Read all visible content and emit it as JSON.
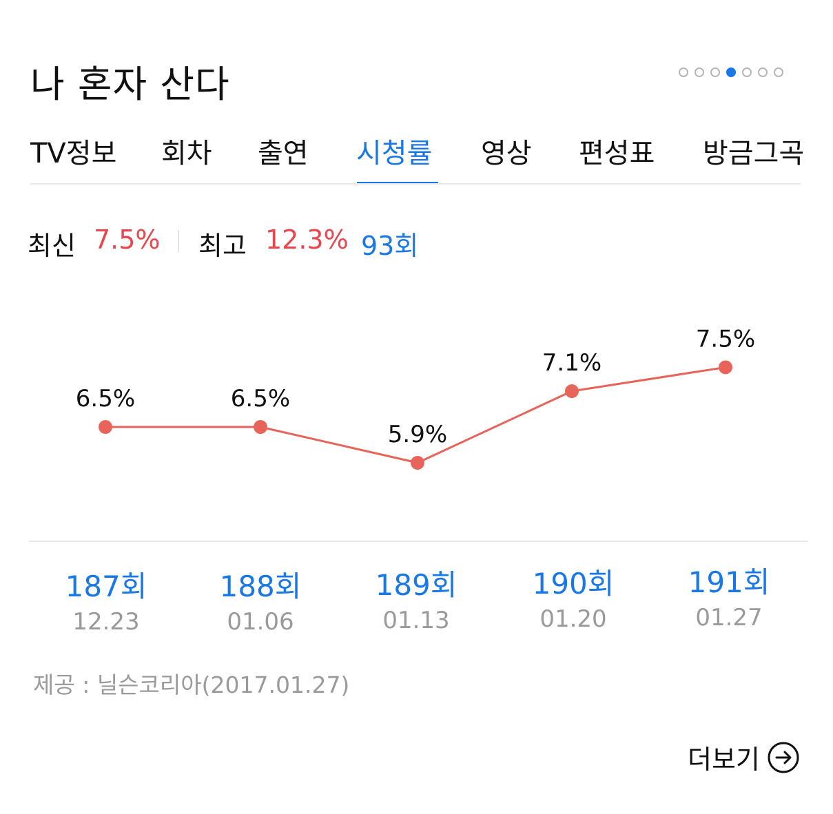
{
  "title": "나 혼자 산다",
  "pager": {
    "count": 7,
    "active_index": 3
  },
  "tabs": [
    "TV정보",
    "회차",
    "출연",
    "시청률",
    "영상",
    "편성표",
    "방금그곡"
  ],
  "active_tab": "시청률",
  "summary": {
    "latest_label": "최신",
    "latest_value": "7.5%",
    "best_label": "최고",
    "best_value": "12.3%",
    "best_episode": "93회"
  },
  "episodes": [
    {
      "label": "187회",
      "date": "12.23"
    },
    {
      "label": "188회",
      "date": "01.06"
    },
    {
      "label": "189회",
      "date": "01.13"
    },
    {
      "label": "190회",
      "date": "01.20"
    },
    {
      "label": "191회",
      "date": "01.27"
    }
  ],
  "chart_data": {
    "type": "line",
    "categories": [
      "187회",
      "188회",
      "189회",
      "190회",
      "191회"
    ],
    "values": [
      6.5,
      6.5,
      5.9,
      7.1,
      7.5
    ],
    "value_labels": [
      "6.5%",
      "6.5%",
      "5.9%",
      "7.1%",
      "7.5%"
    ],
    "unit": "%",
    "grid": false,
    "color": "#e8645a"
  },
  "source": "제공 : 닐슨코리아(2017.01.27)",
  "more_label": "더보기",
  "colors": {
    "accent": "#1a78e6",
    "highlight": "#e8464f",
    "line": "#e8645a",
    "muted": "#9a9a9a"
  },
  "icons": {
    "more": "arrow-right-circle-icon"
  }
}
